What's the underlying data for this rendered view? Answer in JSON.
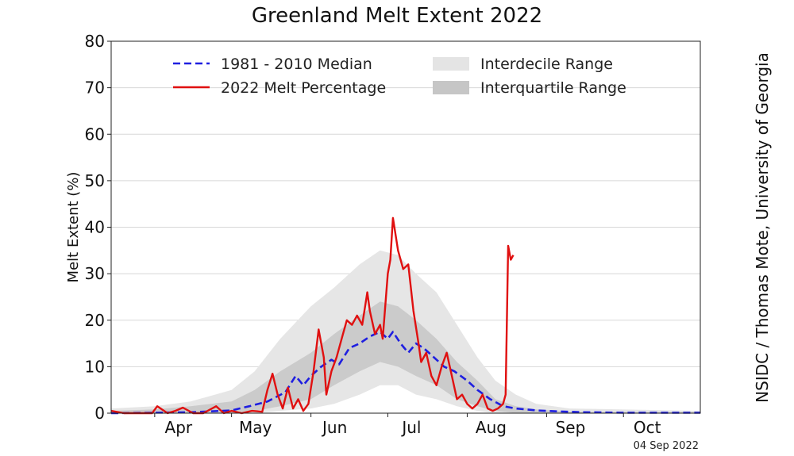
{
  "chart_data": {
    "type": "line",
    "title": "Greenland Melt Extent 2022",
    "ylabel": "Melt Extent (%)",
    "xlabel": "",
    "ylim": [
      0,
      80
    ],
    "xlim": [
      "2022-03-15",
      "2022-10-31"
    ],
    "y_ticks": [
      0,
      10,
      20,
      30,
      40,
      50,
      60,
      70,
      80
    ],
    "x_ticks": [
      {
        "label": "Apr",
        "date": "2022-04-01"
      },
      {
        "label": "May",
        "date": "2022-05-01"
      },
      {
        "label": "Jun",
        "date": "2022-06-01"
      },
      {
        "label": "Jul",
        "date": "2022-07-01"
      },
      {
        "label": "Aug",
        "date": "2022-08-01"
      },
      {
        "label": "Sep",
        "date": "2022-09-01"
      },
      {
        "label": "Oct",
        "date": "2022-10-01"
      }
    ],
    "grid": true,
    "legend_position": "top",
    "legend": [
      {
        "label": "1981 - 2010 Median",
        "kind": "dashed-line",
        "color": "#1f1fe0"
      },
      {
        "label": "2022 Melt Percentage",
        "kind": "line",
        "color": "#e01010"
      },
      {
        "label": "Interdecile Range",
        "kind": "band",
        "color": "#e4e4e4"
      },
      {
        "label": "Interquartile Range",
        "kind": "band",
        "color": "#c8c8c8"
      }
    ],
    "bands": {
      "interdecile": {
        "x": [
          "2022-03-15",
          "2022-04-01",
          "2022-04-15",
          "2022-05-01",
          "2022-05-10",
          "2022-05-20",
          "2022-06-01",
          "2022-06-10",
          "2022-06-20",
          "2022-06-28",
          "2022-07-05",
          "2022-07-12",
          "2022-07-20",
          "2022-07-28",
          "2022-08-05",
          "2022-08-12",
          "2022-08-20",
          "2022-08-28",
          "2022-09-10",
          "2022-10-31"
        ],
        "lower": [
          0,
          0,
          0,
          0,
          0,
          0.5,
          1,
          2,
          4,
          6,
          6,
          4,
          3,
          1.5,
          0.5,
          0,
          0,
          0,
          0,
          0
        ],
        "upper": [
          1,
          1.5,
          2.5,
          5,
          9,
          16,
          23,
          27,
          32,
          35,
          34,
          30,
          26,
          19,
          12,
          7,
          4,
          2,
          1,
          0.5
        ]
      },
      "interquartile": {
        "x": [
          "2022-03-15",
          "2022-04-01",
          "2022-04-15",
          "2022-05-01",
          "2022-05-10",
          "2022-05-20",
          "2022-06-01",
          "2022-06-10",
          "2022-06-20",
          "2022-06-28",
          "2022-07-05",
          "2022-07-12",
          "2022-07-20",
          "2022-07-28",
          "2022-08-05",
          "2022-08-12",
          "2022-08-20",
          "2022-08-28",
          "2022-09-10",
          "2022-10-31"
        ],
        "lower": [
          0,
          0,
          0,
          0,
          0.5,
          1.5,
          3,
          6,
          9,
          11,
          10,
          8,
          6,
          3,
          1.5,
          0.5,
          0,
          0,
          0,
          0
        ],
        "upper": [
          0.5,
          0.8,
          1.5,
          2.5,
          5,
          9,
          13,
          17,
          21,
          24,
          23,
          20,
          16,
          11,
          7,
          3,
          1.5,
          0.8,
          0.3,
          0.2
        ]
      }
    },
    "series": [
      {
        "name": "1981 - 2010 Median",
        "color": "#1f1fe0",
        "dashed": true,
        "x": [
          "2022-03-15",
          "2022-04-01",
          "2022-04-15",
          "2022-05-01",
          "2022-05-08",
          "2022-05-15",
          "2022-05-22",
          "2022-05-26",
          "2022-05-29",
          "2022-06-01",
          "2022-06-05",
          "2022-06-09",
          "2022-06-12",
          "2022-06-16",
          "2022-06-20",
          "2022-06-24",
          "2022-06-28",
          "2022-07-01",
          "2022-07-03",
          "2022-07-06",
          "2022-07-09",
          "2022-07-12",
          "2022-07-15",
          "2022-07-19",
          "2022-07-23",
          "2022-07-27",
          "2022-08-01",
          "2022-08-05",
          "2022-08-10",
          "2022-08-15",
          "2022-08-20",
          "2022-08-28",
          "2022-09-05",
          "2022-09-15",
          "2022-10-01",
          "2022-10-31"
        ],
        "values": [
          0,
          0.1,
          0.2,
          0.6,
          1.5,
          2.5,
          4.5,
          8,
          6,
          8,
          10,
          11.5,
          10.5,
          14,
          15,
          16.5,
          17.5,
          16,
          17.5,
          15,
          13,
          15,
          14,
          12,
          10,
          9,
          7,
          5,
          3,
          1.5,
          1,
          0.6,
          0.4,
          0.2,
          0.1,
          0.1
        ]
      },
      {
        "name": "2022 Melt Percentage",
        "color": "#e01010",
        "dashed": false,
        "x": [
          "2022-03-15",
          "2022-03-20",
          "2022-03-27",
          "2022-03-31",
          "2022-04-02",
          "2022-04-06",
          "2022-04-09",
          "2022-04-12",
          "2022-04-16",
          "2022-04-20",
          "2022-04-25",
          "2022-04-28",
          "2022-05-01",
          "2022-05-05",
          "2022-05-09",
          "2022-05-13",
          "2022-05-15",
          "2022-05-17",
          "2022-05-19",
          "2022-05-21",
          "2022-05-23",
          "2022-05-25",
          "2022-05-27",
          "2022-05-29",
          "2022-05-31",
          "2022-06-02",
          "2022-06-04",
          "2022-06-06",
          "2022-06-07",
          "2022-06-09",
          "2022-06-11",
          "2022-06-13",
          "2022-06-15",
          "2022-06-17",
          "2022-06-19",
          "2022-06-21",
          "2022-06-23",
          "2022-06-24",
          "2022-06-26",
          "2022-06-28",
          "2022-06-29",
          "2022-07-01",
          "2022-07:02",
          "2022-07-03",
          "2022-07-05",
          "2022-07-07",
          "2022-07-09",
          "2022-07-11",
          "2022-07-13",
          "2022-07-14",
          "2022-07-16",
          "2022-07-18",
          "2022-07-20",
          "2022-07-22",
          "2022-07-24",
          "2022-07-26",
          "2022-07-28",
          "2022-07-30",
          "2022-08-01",
          "2022-08-03",
          "2022-08-05",
          "2022-08-07",
          "2022-08-09",
          "2022-08-11",
          "2022-08-13",
          "2022-08-15",
          "2022-08-16",
          "2022-08-17",
          "2022-08-18",
          "2022-08-19"
        ],
        "values": [
          0.5,
          0,
          0,
          0,
          1.5,
          0,
          0.5,
          1.2,
          0,
          0,
          1.5,
          0,
          0.5,
          0,
          0.5,
          0.3,
          5,
          8.5,
          4,
          1,
          5.5,
          1,
          3,
          0.5,
          2,
          9,
          18,
          12,
          4,
          9,
          12,
          16,
          20,
          19,
          21,
          19,
          26,
          22,
          17,
          19,
          16,
          30,
          33,
          42,
          35,
          31,
          32,
          22,
          15,
          11,
          13,
          8,
          6,
          10,
          13,
          8,
          3,
          4,
          2,
          1,
          2,
          4,
          1,
          0.5,
          1,
          2,
          4,
          36,
          33,
          34
        ]
      }
    ],
    "source_credit": "NSIDC / Thomas Mote, University of Georgia",
    "date_stamp": "04 Sep 2022"
  }
}
